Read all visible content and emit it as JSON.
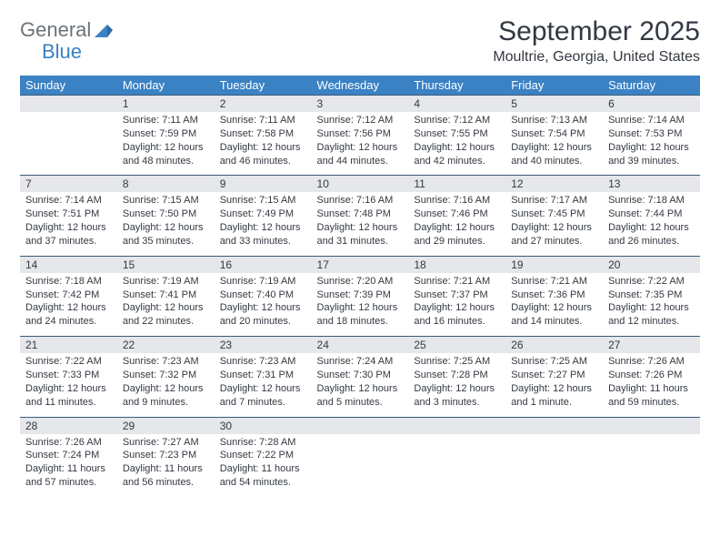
{
  "logo": {
    "part1": "General",
    "part2": "Blue"
  },
  "title": "September 2025",
  "location": "Moultrie, Georgia, United States",
  "colors": {
    "header_bg": "#3a82c4",
    "header_text": "#ffffff",
    "daynum_bg": "#e5e7ea",
    "row_border": "#3a5a7a",
    "body_text": "#333942",
    "logo_gray": "#6b7278",
    "logo_blue": "#3a82c4",
    "page_bg": "#ffffff"
  },
  "typography": {
    "title_fontsize": 30,
    "location_fontsize": 16,
    "weekday_fontsize": 13,
    "daynum_fontsize": 12,
    "body_fontsize": 11,
    "logo_fontsize": 22
  },
  "weekdays": [
    "Sunday",
    "Monday",
    "Tuesday",
    "Wednesday",
    "Thursday",
    "Friday",
    "Saturday"
  ],
  "weeks": [
    [
      null,
      {
        "n": "1",
        "sr": "Sunrise: 7:11 AM",
        "ss": "Sunset: 7:59 PM",
        "d1": "Daylight: 12 hours",
        "d2": "and 48 minutes."
      },
      {
        "n": "2",
        "sr": "Sunrise: 7:11 AM",
        "ss": "Sunset: 7:58 PM",
        "d1": "Daylight: 12 hours",
        "d2": "and 46 minutes."
      },
      {
        "n": "3",
        "sr": "Sunrise: 7:12 AM",
        "ss": "Sunset: 7:56 PM",
        "d1": "Daylight: 12 hours",
        "d2": "and 44 minutes."
      },
      {
        "n": "4",
        "sr": "Sunrise: 7:12 AM",
        "ss": "Sunset: 7:55 PM",
        "d1": "Daylight: 12 hours",
        "d2": "and 42 minutes."
      },
      {
        "n": "5",
        "sr": "Sunrise: 7:13 AM",
        "ss": "Sunset: 7:54 PM",
        "d1": "Daylight: 12 hours",
        "d2": "and 40 minutes."
      },
      {
        "n": "6",
        "sr": "Sunrise: 7:14 AM",
        "ss": "Sunset: 7:53 PM",
        "d1": "Daylight: 12 hours",
        "d2": "and 39 minutes."
      }
    ],
    [
      {
        "n": "7",
        "sr": "Sunrise: 7:14 AM",
        "ss": "Sunset: 7:51 PM",
        "d1": "Daylight: 12 hours",
        "d2": "and 37 minutes."
      },
      {
        "n": "8",
        "sr": "Sunrise: 7:15 AM",
        "ss": "Sunset: 7:50 PM",
        "d1": "Daylight: 12 hours",
        "d2": "and 35 minutes."
      },
      {
        "n": "9",
        "sr": "Sunrise: 7:15 AM",
        "ss": "Sunset: 7:49 PM",
        "d1": "Daylight: 12 hours",
        "d2": "and 33 minutes."
      },
      {
        "n": "10",
        "sr": "Sunrise: 7:16 AM",
        "ss": "Sunset: 7:48 PM",
        "d1": "Daylight: 12 hours",
        "d2": "and 31 minutes."
      },
      {
        "n": "11",
        "sr": "Sunrise: 7:16 AM",
        "ss": "Sunset: 7:46 PM",
        "d1": "Daylight: 12 hours",
        "d2": "and 29 minutes."
      },
      {
        "n": "12",
        "sr": "Sunrise: 7:17 AM",
        "ss": "Sunset: 7:45 PM",
        "d1": "Daylight: 12 hours",
        "d2": "and 27 minutes."
      },
      {
        "n": "13",
        "sr": "Sunrise: 7:18 AM",
        "ss": "Sunset: 7:44 PM",
        "d1": "Daylight: 12 hours",
        "d2": "and 26 minutes."
      }
    ],
    [
      {
        "n": "14",
        "sr": "Sunrise: 7:18 AM",
        "ss": "Sunset: 7:42 PM",
        "d1": "Daylight: 12 hours",
        "d2": "and 24 minutes."
      },
      {
        "n": "15",
        "sr": "Sunrise: 7:19 AM",
        "ss": "Sunset: 7:41 PM",
        "d1": "Daylight: 12 hours",
        "d2": "and 22 minutes."
      },
      {
        "n": "16",
        "sr": "Sunrise: 7:19 AM",
        "ss": "Sunset: 7:40 PM",
        "d1": "Daylight: 12 hours",
        "d2": "and 20 minutes."
      },
      {
        "n": "17",
        "sr": "Sunrise: 7:20 AM",
        "ss": "Sunset: 7:39 PM",
        "d1": "Daylight: 12 hours",
        "d2": "and 18 minutes."
      },
      {
        "n": "18",
        "sr": "Sunrise: 7:21 AM",
        "ss": "Sunset: 7:37 PM",
        "d1": "Daylight: 12 hours",
        "d2": "and 16 minutes."
      },
      {
        "n": "19",
        "sr": "Sunrise: 7:21 AM",
        "ss": "Sunset: 7:36 PM",
        "d1": "Daylight: 12 hours",
        "d2": "and 14 minutes."
      },
      {
        "n": "20",
        "sr": "Sunrise: 7:22 AM",
        "ss": "Sunset: 7:35 PM",
        "d1": "Daylight: 12 hours",
        "d2": "and 12 minutes."
      }
    ],
    [
      {
        "n": "21",
        "sr": "Sunrise: 7:22 AM",
        "ss": "Sunset: 7:33 PM",
        "d1": "Daylight: 12 hours",
        "d2": "and 11 minutes."
      },
      {
        "n": "22",
        "sr": "Sunrise: 7:23 AM",
        "ss": "Sunset: 7:32 PM",
        "d1": "Daylight: 12 hours",
        "d2": "and 9 minutes."
      },
      {
        "n": "23",
        "sr": "Sunrise: 7:23 AM",
        "ss": "Sunset: 7:31 PM",
        "d1": "Daylight: 12 hours",
        "d2": "and 7 minutes."
      },
      {
        "n": "24",
        "sr": "Sunrise: 7:24 AM",
        "ss": "Sunset: 7:30 PM",
        "d1": "Daylight: 12 hours",
        "d2": "and 5 minutes."
      },
      {
        "n": "25",
        "sr": "Sunrise: 7:25 AM",
        "ss": "Sunset: 7:28 PM",
        "d1": "Daylight: 12 hours",
        "d2": "and 3 minutes."
      },
      {
        "n": "26",
        "sr": "Sunrise: 7:25 AM",
        "ss": "Sunset: 7:27 PM",
        "d1": "Daylight: 12 hours",
        "d2": "and 1 minute."
      },
      {
        "n": "27",
        "sr": "Sunrise: 7:26 AM",
        "ss": "Sunset: 7:26 PM",
        "d1": "Daylight: 11 hours",
        "d2": "and 59 minutes."
      }
    ],
    [
      {
        "n": "28",
        "sr": "Sunrise: 7:26 AM",
        "ss": "Sunset: 7:24 PM",
        "d1": "Daylight: 11 hours",
        "d2": "and 57 minutes."
      },
      {
        "n": "29",
        "sr": "Sunrise: 7:27 AM",
        "ss": "Sunset: 7:23 PM",
        "d1": "Daylight: 11 hours",
        "d2": "and 56 minutes."
      },
      {
        "n": "30",
        "sr": "Sunrise: 7:28 AM",
        "ss": "Sunset: 7:22 PM",
        "d1": "Daylight: 11 hours",
        "d2": "and 54 minutes."
      },
      null,
      null,
      null,
      null
    ]
  ]
}
